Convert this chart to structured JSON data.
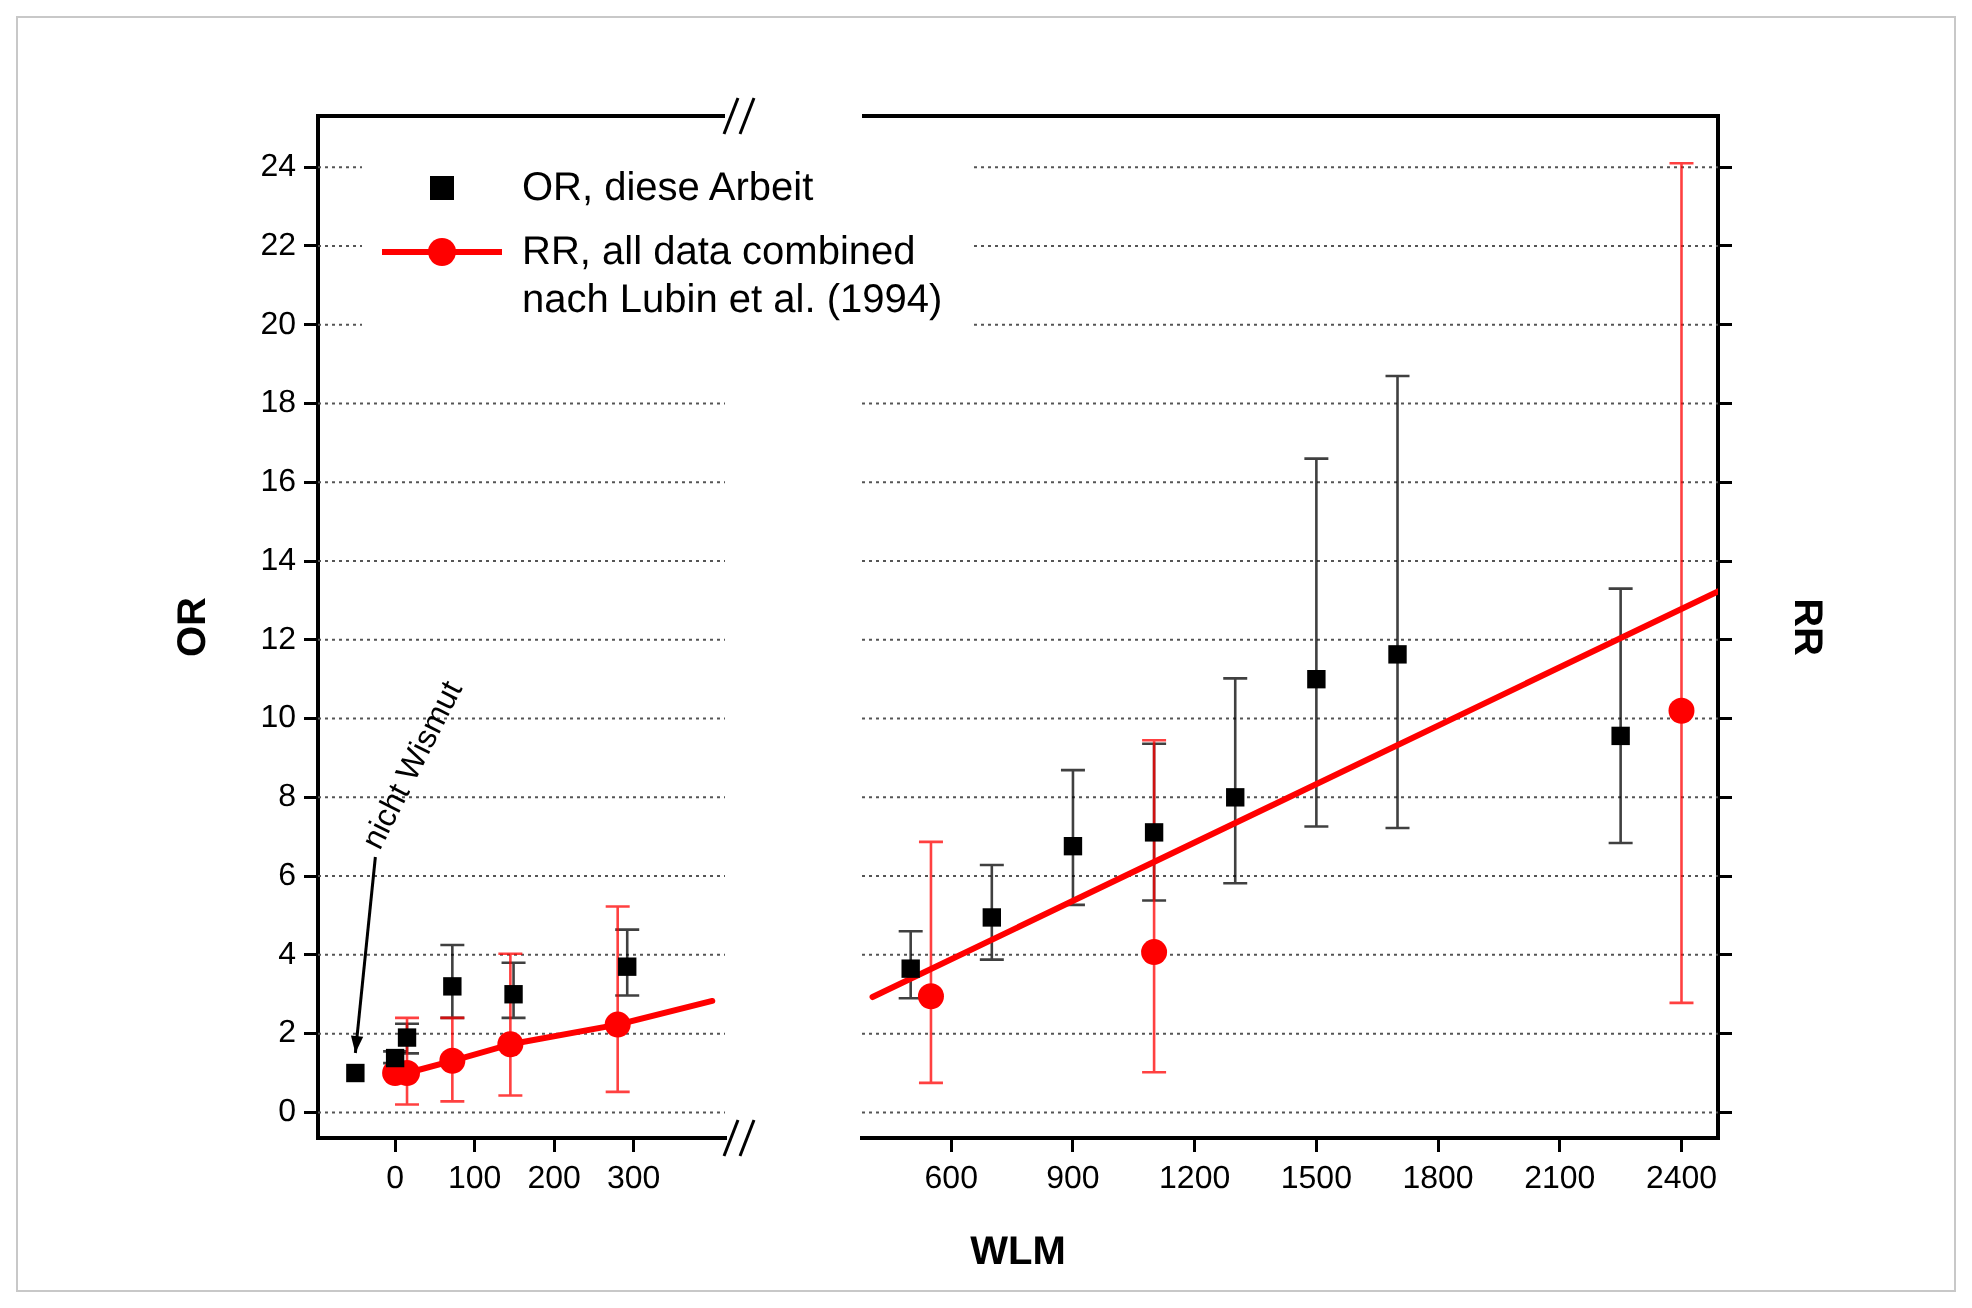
{
  "chart_data": [
    {
      "type": "scatter",
      "ylabel": "OR",
      "xlim": [
        -97,
        415
      ],
      "xticks": [
        0,
        100,
        200,
        300
      ],
      "ylim": [
        -0.65,
        25.3
      ],
      "yticks": [
        0,
        2,
        4,
        6,
        8,
        10,
        12,
        14,
        16,
        18,
        20,
        22,
        24
      ],
      "grid": "y",
      "legend": "top right",
      "annotations": [
        "nicht Wismut"
      ],
      "series": [
        {
          "name": "OR, diese Arbeit",
          "type": "scatter",
          "marker": "square",
          "color": "#000000",
          "x": [
            -50,
            0,
            15,
            72,
            149,
            292
          ],
          "values": [
            1.0,
            1.38,
            1.9,
            3.2,
            3.0,
            3.7
          ],
          "errors": [
            null,
            [
              1.25,
              1.55
            ],
            [
              1.5,
              2.25
            ],
            [
              2.4,
              4.25
            ],
            [
              2.4,
              3.8
            ],
            [
              2.97,
              4.64
            ]
          ]
        },
        {
          "name": "RR, all data combined nach Lubin et al. (1994)",
          "type": "scatter",
          "marker": "circle",
          "color": "#ff0000",
          "x": [
            0,
            15,
            72,
            145,
            280
          ],
          "values": [
            1.0,
            1.0,
            1.31,
            1.73,
            2.23
          ],
          "errors": [
            null,
            [
              0.2,
              2.4
            ],
            [
              0.28,
              2.4
            ],
            [
              0.43,
              4.03
            ],
            [
              0.52,
              5.23
            ]
          ]
        },
        {
          "type": "line",
          "marker": "none",
          "line_style": "solid",
          "color": "#ff0000",
          "x": [
            0,
            15,
            72,
            145,
            280,
            399
          ],
          "values": [
            1.0,
            1.0,
            1.31,
            1.73,
            2.23,
            2.83
          ]
        }
      ]
    },
    {
      "type": "scatter",
      "xlabel": "WLM",
      "y2label": "RR",
      "tick_labels": "x",
      "xlim": [
        380,
        2490
      ],
      "xticks": [
        600,
        900,
        1200,
        1500,
        1800,
        2100,
        2400
      ],
      "ylim": [
        -0.65,
        25.3
      ],
      "yticks": [
        0,
        2,
        4,
        6,
        8,
        10,
        12,
        14,
        16,
        18,
        20,
        22,
        24
      ],
      "grid": "y",
      "series": [
        {
          "type": "scatter",
          "marker": "square",
          "color": "#000000",
          "x": [
            500,
            700,
            900,
            1100,
            1300,
            1500,
            1700,
            2250
          ],
          "values": [
            3.65,
            4.95,
            6.76,
            7.11,
            8.0,
            11.0,
            11.63,
            9.56
          ],
          "errors": [
            [
              2.9,
              4.6
            ],
            [
              3.88,
              6.28
            ],
            [
              5.27,
              8.69
            ],
            [
              5.38,
              9.36
            ],
            [
              5.82,
              11.02
            ],
            [
              7.26,
              16.6
            ],
            [
              7.22,
              18.7
            ],
            [
              6.84,
              13.3
            ]
          ]
        },
        {
          "type": "scatter",
          "marker": "circle",
          "color": "#ff0000",
          "x": [
            550,
            1100,
            2400
          ],
          "values": [
            2.95,
            4.07,
            10.2
          ],
          "errors": [
            [
              0.75,
              6.87
            ],
            [
              1.02,
              9.45
            ],
            [
              2.78,
              24.1
            ]
          ]
        },
        {
          "type": "line",
          "marker": "none",
          "line_style": "solid",
          "color": "#ff0000",
          "x": [
            406,
            2490
          ],
          "values": [
            2.93,
            13.23
          ]
        }
      ]
    }
  ]
}
